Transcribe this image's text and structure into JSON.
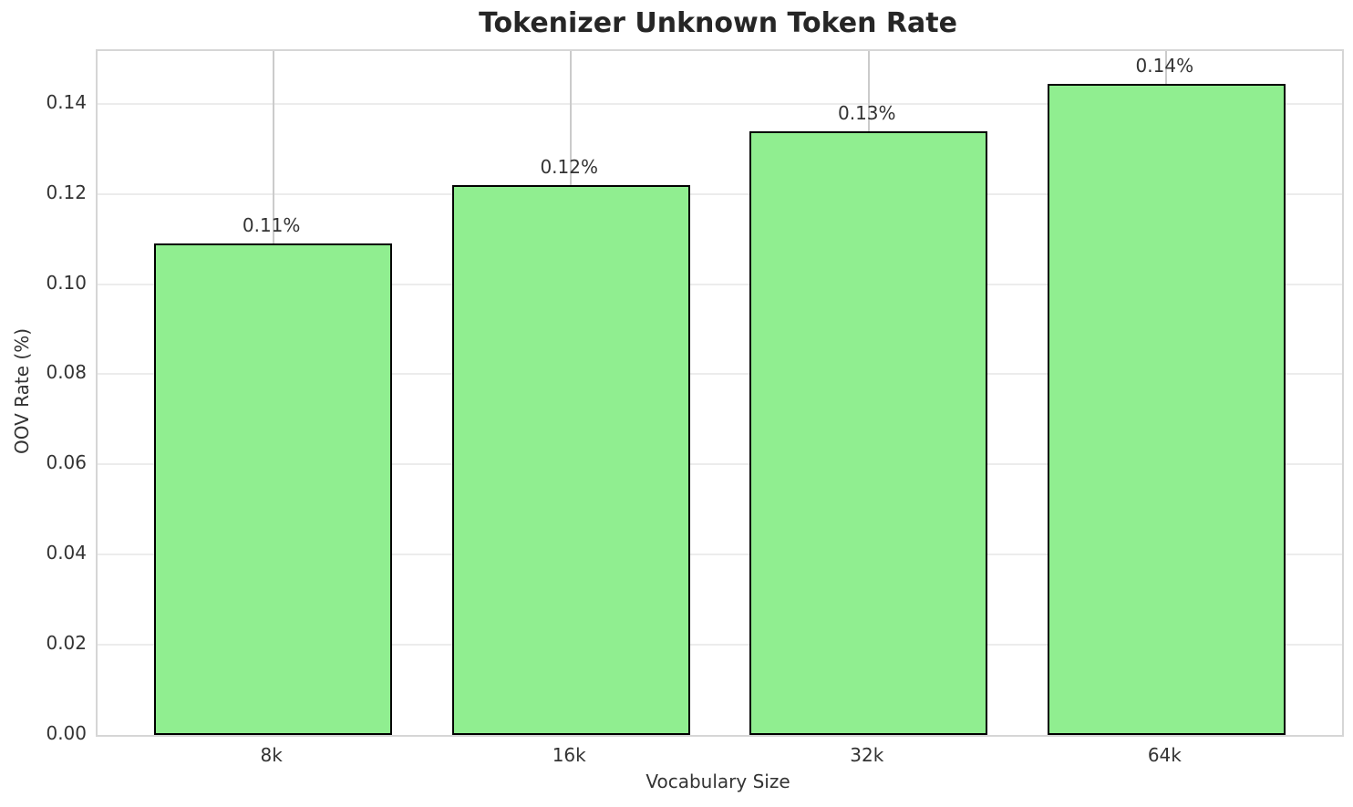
{
  "chart_data": {
    "type": "bar",
    "title": "Tokenizer Unknown Token Rate",
    "xlabel": "Vocabulary Size",
    "ylabel": "OOV Rate (%)",
    "categories": [
      "8k",
      "16k",
      "32k",
      "64k"
    ],
    "values": [
      0.109,
      0.122,
      0.134,
      0.1445
    ],
    "bar_labels": [
      "0.11%",
      "0.12%",
      "0.13%",
      "0.14%"
    ],
    "yticks": [
      {
        "value": 0.0,
        "label": "0.00"
      },
      {
        "value": 0.02,
        "label": "0.02"
      },
      {
        "value": 0.04,
        "label": "0.04"
      },
      {
        "value": 0.06,
        "label": "0.06"
      },
      {
        "value": 0.08,
        "label": "0.08"
      },
      {
        "value": 0.1,
        "label": "0.10"
      },
      {
        "value": 0.12,
        "label": "0.12"
      },
      {
        "value": 0.14,
        "label": "0.14"
      }
    ],
    "ylim": [
      0,
      0.1517
    ],
    "bar_width_fraction": 0.8,
    "grid": "on",
    "legend": "none",
    "colors": {
      "bar_fill": "#90EE90",
      "bar_edge": "#000000",
      "grid_horizontal": "#ececec",
      "grid_vertical": "#cbcbcb",
      "spine": "#d6d6d6",
      "tick_text": "#333333",
      "title_text": "#262626",
      "background": "#ffffff"
    }
  }
}
